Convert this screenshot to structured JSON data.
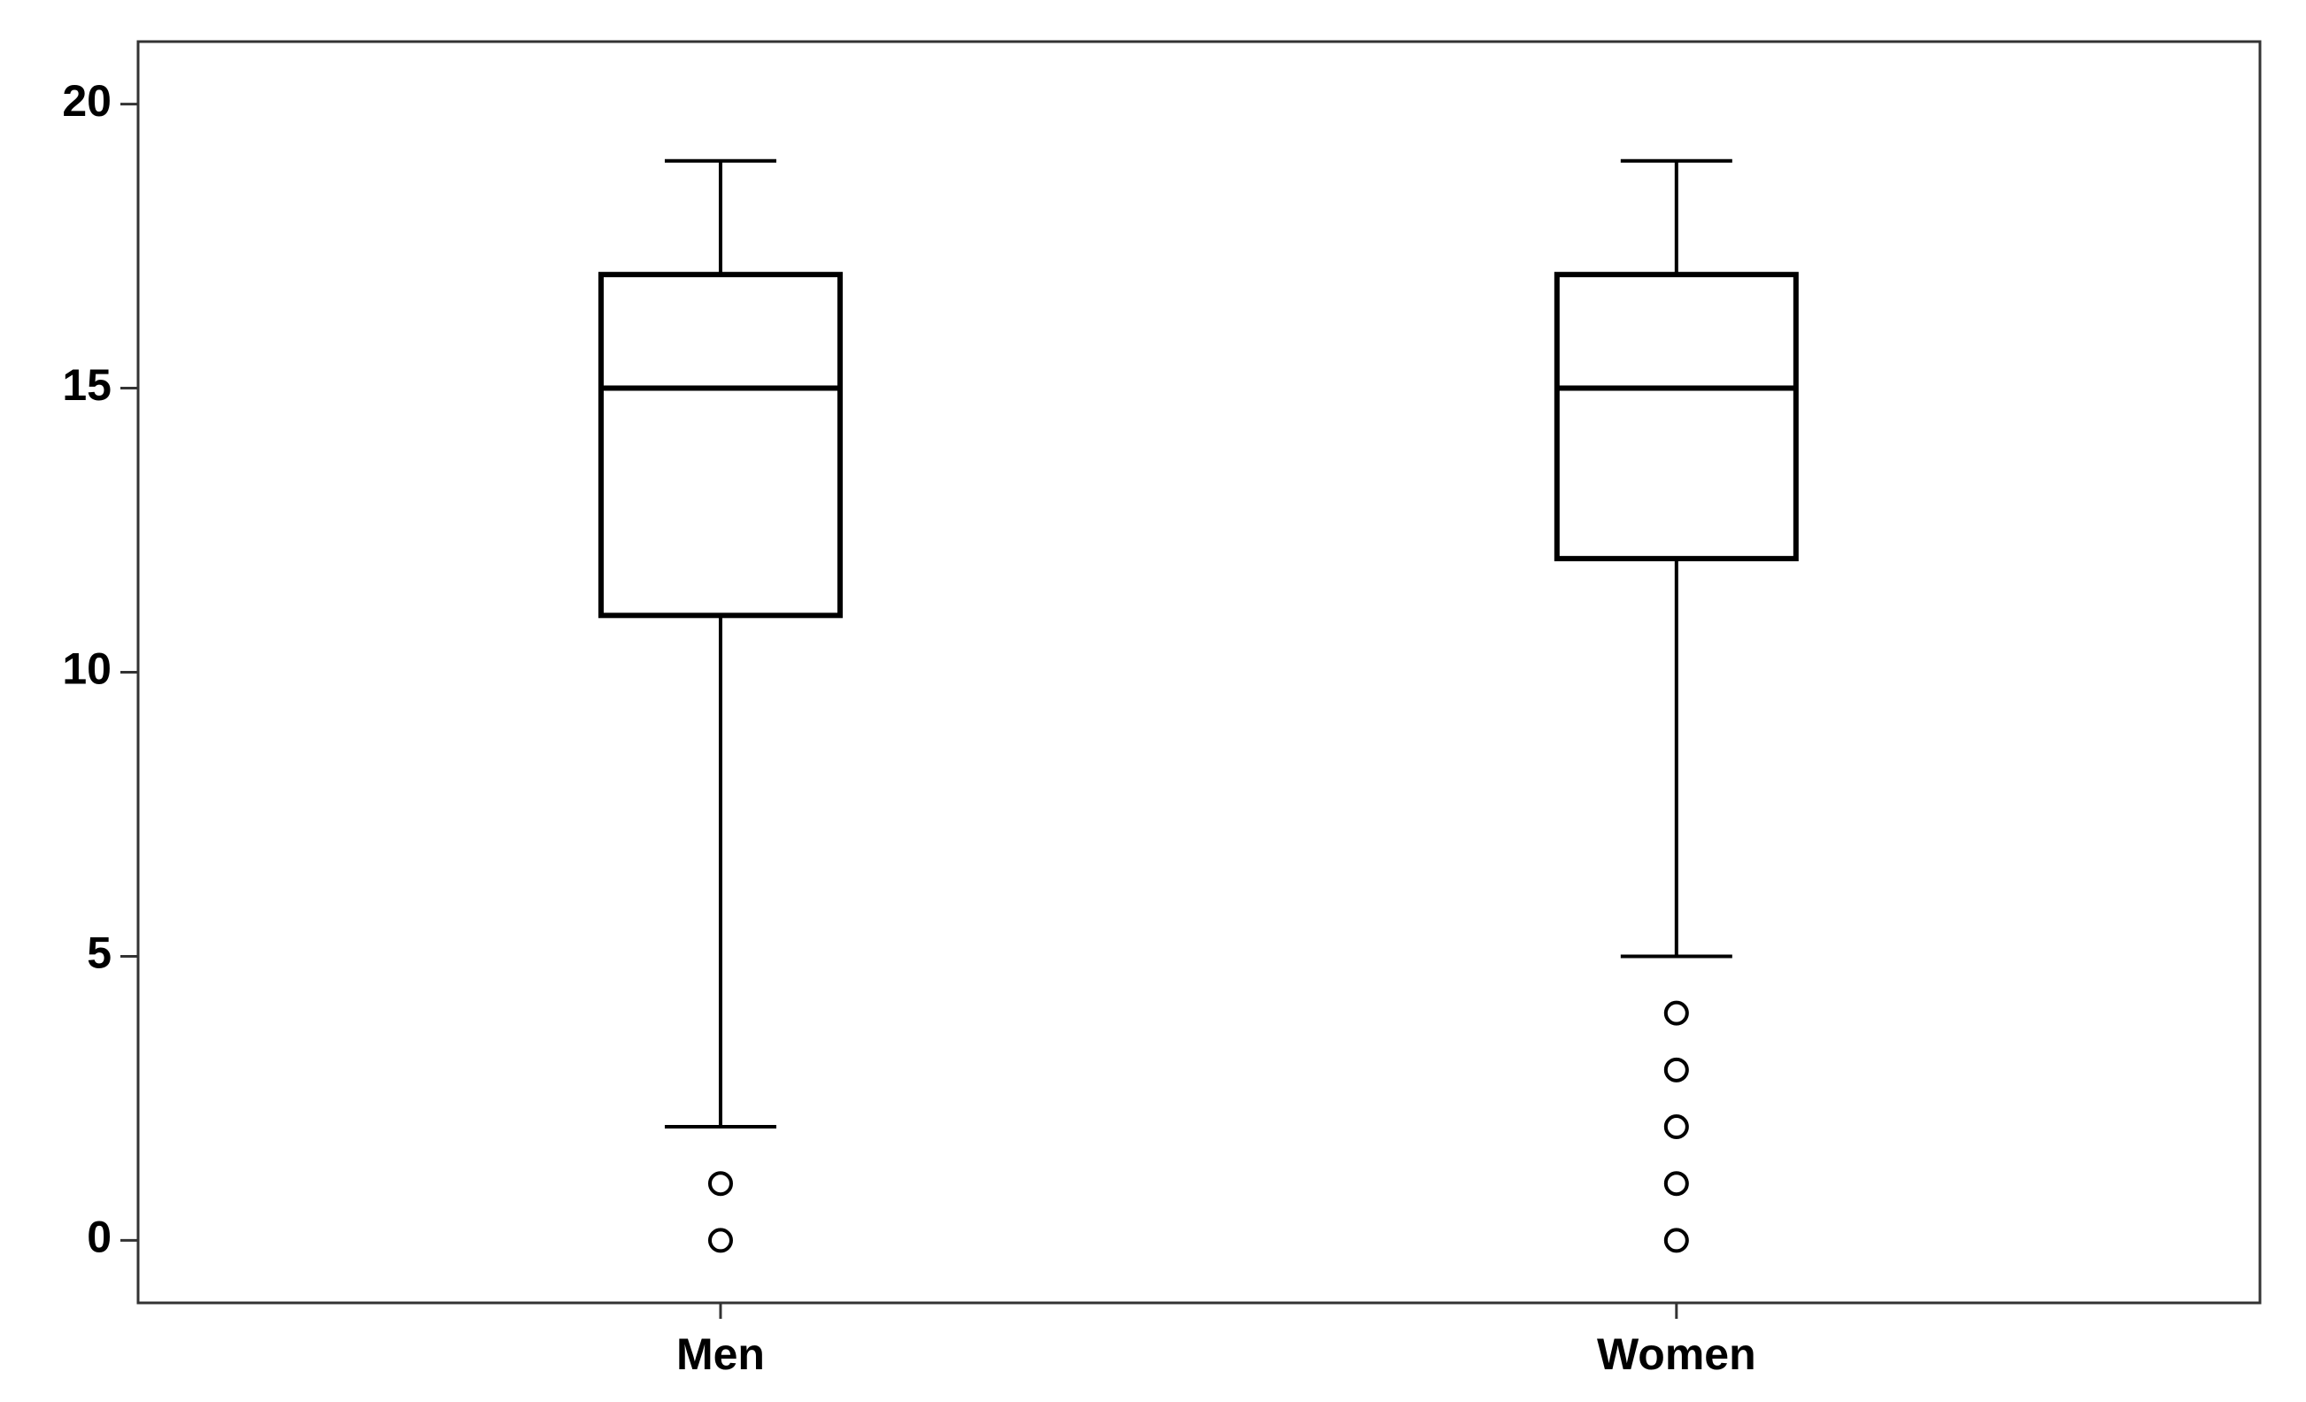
{
  "chart_data": {
    "type": "box",
    "categories": [
      "Men",
      "Women"
    ],
    "boxes": [
      {
        "low": 2,
        "q1": 11,
        "median": 15,
        "q3": 17,
        "high": 19,
        "outliers": [
          1,
          0
        ]
      },
      {
        "low": 5,
        "q1": 12,
        "median": 15,
        "q3": 17,
        "high": 19,
        "outliers": [
          4,
          3,
          2,
          1,
          0
        ]
      }
    ],
    "color": "#000000",
    "ylim": [
      -1.1,
      21.1
    ],
    "yticks": [
      0,
      5,
      10,
      15,
      20
    ],
    "grid": false
  }
}
